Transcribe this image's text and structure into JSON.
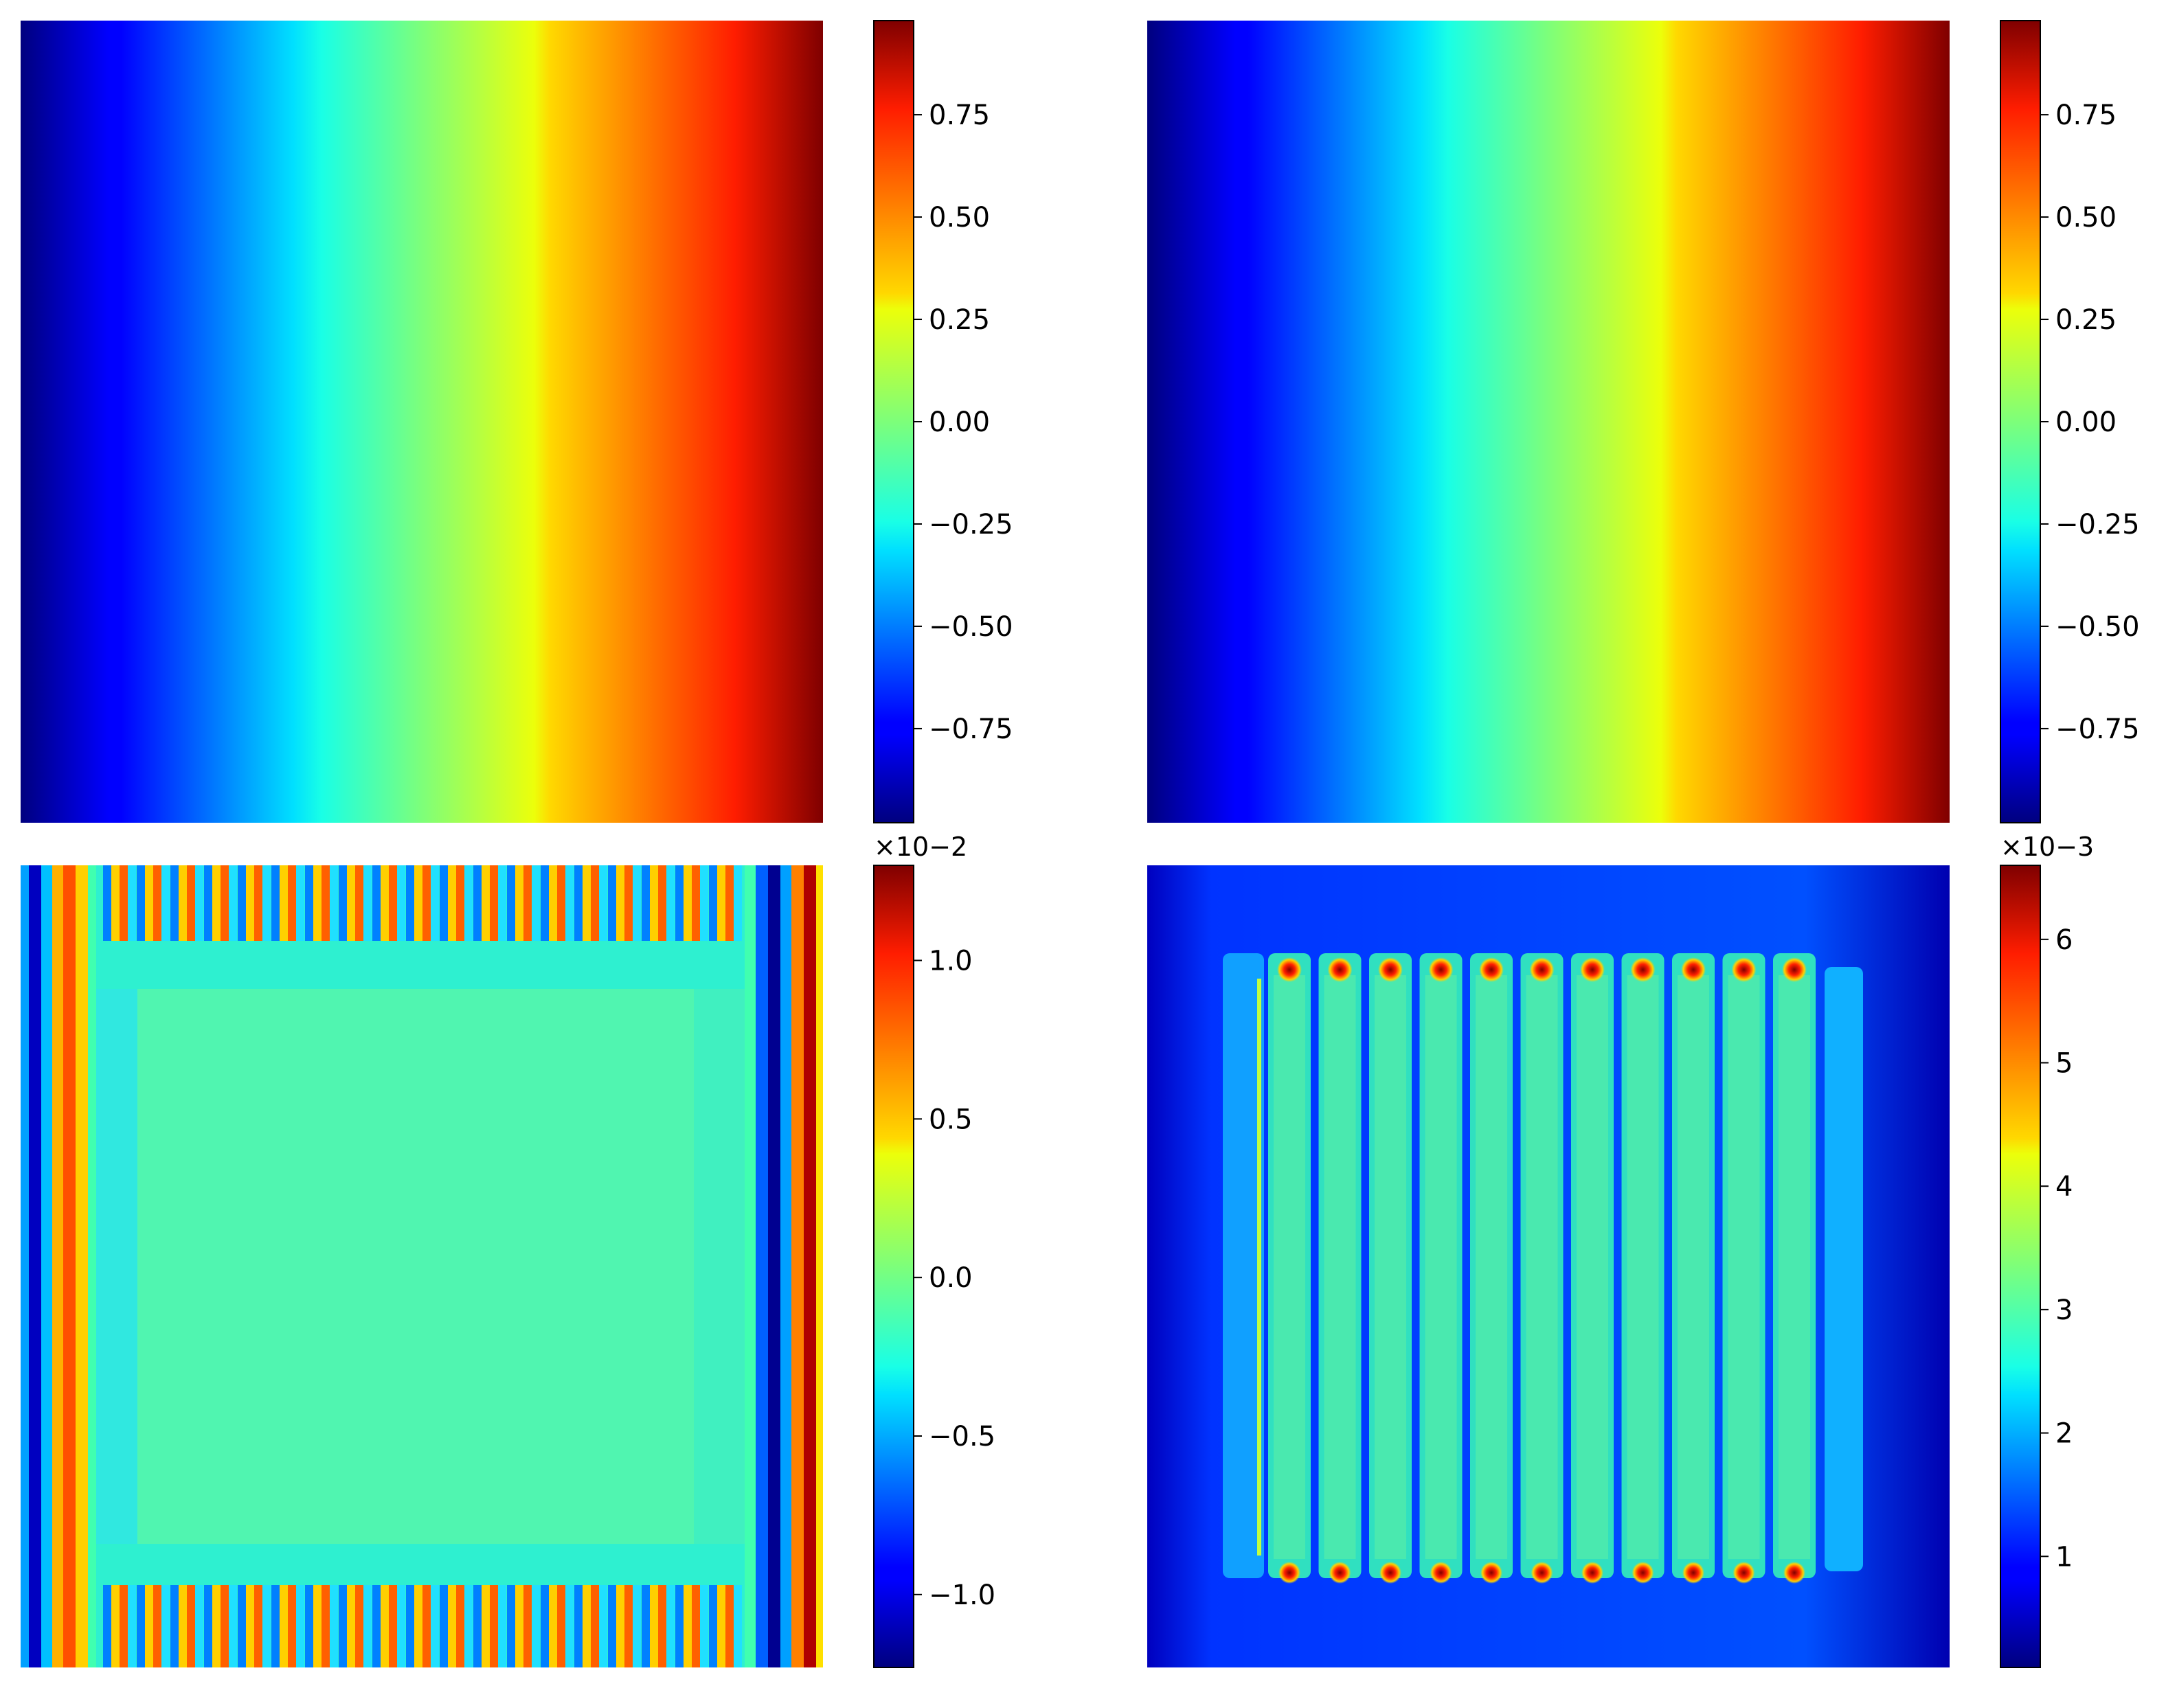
{
  "colormap": "jet",
  "chart_data": [
    {
      "type": "heatmap",
      "position": "top-left",
      "pattern": "horizontal-gradient",
      "title": "",
      "xlabel": "",
      "ylabel": "",
      "colorbar": {
        "range": [
          -0.98,
          0.98
        ],
        "ticks": [
          -0.75,
          -0.5,
          -0.25,
          0.0,
          0.25,
          0.5,
          0.75
        ],
        "tick_labels": [
          "−0.75",
          "−0.50",
          "−0.25",
          "0.00",
          "0.25",
          "0.50",
          "0.75"
        ],
        "exponent_label": ""
      }
    },
    {
      "type": "heatmap",
      "position": "top-right",
      "pattern": "horizontal-gradient",
      "title": "",
      "xlabel": "",
      "ylabel": "",
      "colorbar": {
        "range": [
          -0.98,
          0.98
        ],
        "ticks": [
          -0.75,
          -0.5,
          -0.25,
          0.0,
          0.25,
          0.5,
          0.75
        ],
        "tick_labels": [
          "−0.75",
          "−0.50",
          "−0.25",
          "0.00",
          "0.25",
          "0.50",
          "0.75"
        ],
        "exponent_label": ""
      }
    },
    {
      "type": "heatmap",
      "position": "bottom-left",
      "pattern": "error-stripes",
      "title": "",
      "xlabel": "",
      "ylabel": "",
      "colorbar": {
        "range": [
          -1.23,
          1.3
        ],
        "ticks": [
          -1.0,
          -0.5,
          0.0,
          0.5,
          1.0
        ],
        "tick_labels": [
          "−1.0",
          "−0.5",
          "0.0",
          "0.5",
          "1.0"
        ],
        "exponent_label": "×10−2"
      }
    },
    {
      "type": "heatmap",
      "position": "bottom-right",
      "pattern": "absolute-error-columns",
      "title": "",
      "xlabel": "",
      "ylabel": "",
      "colorbar": {
        "range": [
          0.1,
          6.6
        ],
        "ticks": [
          1,
          2,
          3,
          4,
          5,
          6
        ],
        "tick_labels": [
          "1",
          "2",
          "3",
          "4",
          "5",
          "6"
        ],
        "exponent_label": "×10−3"
      }
    }
  ]
}
